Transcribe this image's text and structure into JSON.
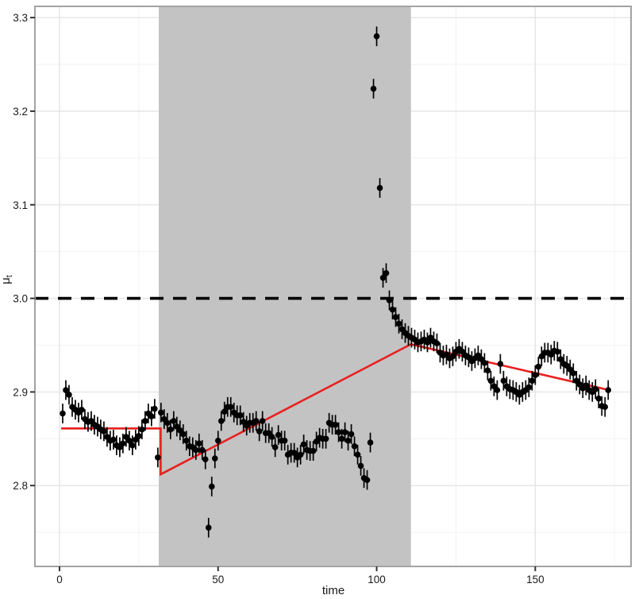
{
  "chart_data": {
    "type": "scatter",
    "title": "",
    "xlabel": "time",
    "ylabel": "μ",
    "ylabel_sub": "t",
    "legend": "none",
    "grid": "on",
    "x_domain": [
      -7.75,
      180.2
    ],
    "y_domain": [
      2.7136,
      3.312
    ],
    "x_ticks": [
      0,
      50,
      100,
      150
    ],
    "x_minor_ticks": [
      25,
      75,
      125,
      175
    ],
    "y_ticks": [
      2.8,
      2.9,
      3.0,
      3.1,
      3.2,
      3.3
    ],
    "y_minor_ticks": [
      2.75,
      2.85,
      2.95,
      3.05,
      3.15,
      3.25
    ],
    "shaded_region": {
      "x_start": 31.3,
      "x_end": 110.8,
      "color": "#c3c3c3"
    },
    "reference_line": {
      "y": 3.0,
      "style": "dashed",
      "color": "#000000"
    },
    "fitted_line": {
      "color": "#e8201f",
      "points": [
        [
          0.5,
          2.861
        ],
        [
          31.9,
          2.861
        ],
        [
          31.9,
          2.812
        ],
        [
          110.8,
          2.951
        ],
        [
          173.3,
          2.902
        ]
      ]
    },
    "series": [
      {
        "name": "posterior mean with error bars",
        "marker_color": "#000000",
        "error_bar_halfwidth": 0.0105,
        "x_start": 1,
        "x_step": 1,
        "y": [
          2.877,
          2.902,
          2.897,
          2.884,
          2.881,
          2.878,
          2.881,
          2.871,
          2.868,
          2.869,
          2.865,
          2.863,
          2.86,
          2.858,
          2.852,
          2.848,
          2.849,
          2.843,
          2.841,
          2.845,
          2.852,
          2.848,
          2.843,
          2.849,
          2.853,
          2.86,
          2.869,
          2.877,
          2.874,
          2.882,
          2.83,
          2.878,
          2.871,
          2.867,
          2.86,
          2.869,
          2.863,
          2.859,
          2.855,
          2.848,
          2.842,
          2.841,
          2.838,
          2.845,
          2.838,
          2.828,
          2.755,
          2.799,
          2.829,
          2.848,
          2.869,
          2.879,
          2.884,
          2.884,
          2.878,
          2.875,
          2.875,
          2.868,
          2.864,
          2.867,
          2.867,
          2.869,
          2.858,
          2.869,
          2.856,
          2.856,
          2.852,
          2.841,
          2.854,
          2.848,
          2.848,
          2.833,
          2.835,
          2.835,
          2.83,
          2.833,
          2.844,
          2.838,
          2.837,
          2.837,
          2.847,
          2.851,
          2.85,
          2.85,
          2.867,
          2.865,
          2.865,
          2.857,
          2.85,
          2.857,
          2.848,
          2.855,
          2.842,
          2.833,
          2.821,
          2.808,
          2.806,
          2.846,
          3.224,
          3.28,
          3.118,
          3.022,
          3.027,
          2.998,
          2.988,
          2.98,
          2.973,
          2.967,
          2.963,
          2.96,
          2.958,
          2.956,
          2.953,
          2.954,
          2.956,
          2.953,
          2.958,
          2.954,
          2.952,
          2.942,
          2.939,
          2.94,
          2.936,
          2.938,
          2.943,
          2.946,
          2.943,
          2.939,
          2.937,
          2.933,
          2.936,
          2.939,
          2.935,
          2.931,
          2.923,
          2.912,
          2.906,
          2.902,
          2.93,
          2.912,
          2.906,
          2.903,
          2.902,
          2.9,
          2.897,
          2.9,
          2.902,
          2.905,
          2.912,
          2.918,
          2.927,
          2.938,
          2.942,
          2.942,
          2.94,
          2.944,
          2.943,
          2.935,
          2.93,
          2.928,
          2.924,
          2.92,
          2.912,
          2.908,
          2.904,
          2.907,
          2.902,
          2.9,
          2.903,
          2.893,
          2.885,
          2.884,
          2.902
        ]
      }
    ],
    "style": {
      "major_grid_color": "#e4e4e4",
      "minor_grid_color": "#f2f2f2",
      "panel_border_color": "#a3a3a3",
      "tick_color": "#333333",
      "point_radius": 3.8,
      "dash_pattern": "17 12"
    }
  }
}
